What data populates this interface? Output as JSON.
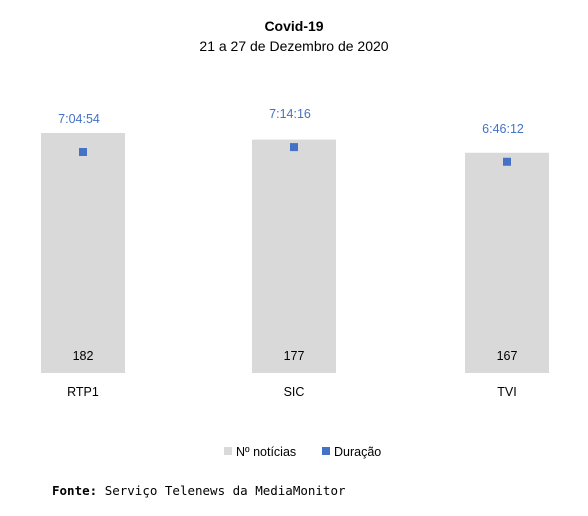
{
  "chart_data": {
    "type": "bar",
    "title": "Covid-19",
    "subtitle": "21 a 27 de Dezembro de 2020",
    "categories": [
      "RTP1",
      "SIC",
      "TVI"
    ],
    "series": [
      {
        "name": "Nº notícias",
        "type": "bar",
        "color": "#D9D9D9",
        "values": [
          182,
          177,
          167
        ],
        "labels": [
          "182",
          "177",
          "167"
        ]
      },
      {
        "name": "Duração",
        "type": "scatter",
        "color": "#4472C4",
        "values_seconds": [
          25494,
          26056,
          24372
        ],
        "labels": [
          "7:04:54",
          "7:14:16",
          "6:46:12"
        ]
      }
    ],
    "legend_position": "bottom",
    "grid": false
  },
  "source": {
    "label": "Fonte:",
    "text": "Serviço Telenews da MediaMonitor"
  }
}
